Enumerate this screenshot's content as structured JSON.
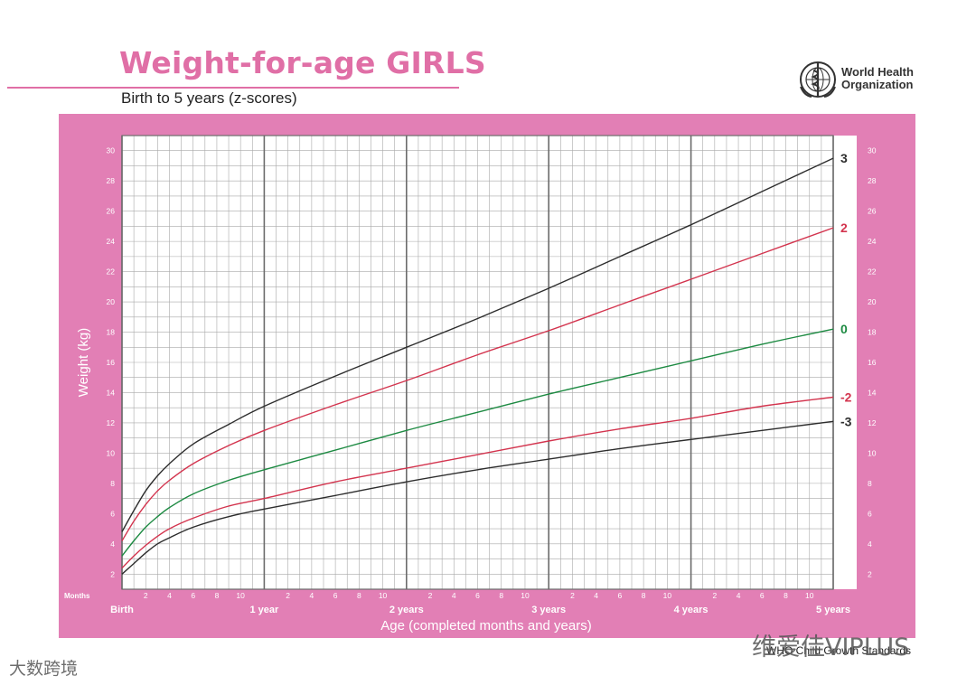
{
  "header": {
    "title": "Weight-for-age GIRLS",
    "subtitle": "Birth to 5 years (z-scores)",
    "org_line1": "World Health",
    "org_line2": "Organization",
    "footer": "WHO Child Growth Standards"
  },
  "watermarks": {
    "right": "维爱佳VIPLUS",
    "left": "大数跨境"
  },
  "colors": {
    "panel": "#e27fb5",
    "plot_bg": "#ffffff",
    "grid_minor": "#a9a9a9",
    "grid_major": "#6c6c6c",
    "z3": "#2d2d2d",
    "z2": "#d3344e",
    "z0": "#1d8a42",
    "zm2": "#d3344e",
    "zm3": "#2d2d2d"
  },
  "chart_data": {
    "type": "line",
    "title": "Weight-for-age GIRLS",
    "subtitle": "Birth to 5 years (z-scores)",
    "xlabel": "Age (completed months and years)",
    "ylabel": "Weight (kg)",
    "xlim": [
      0,
      60
    ],
    "ylim": [
      1,
      31
    ],
    "y_ticks": [
      2,
      4,
      6,
      8,
      10,
      12,
      14,
      16,
      18,
      20,
      22,
      24,
      26,
      28,
      30
    ],
    "months_label": "Months",
    "month_ticks": [
      "2",
      "4",
      "6",
      "8",
      "10"
    ],
    "year_labels": [
      "Birth",
      "1 year",
      "2 years",
      "3 years",
      "4 years",
      "5 years"
    ],
    "grid": true,
    "x": [
      0,
      1,
      2,
      3,
      4,
      6,
      9,
      12,
      18,
      24,
      30,
      36,
      42,
      48,
      54,
      60
    ],
    "series": [
      {
        "name": "3",
        "color_key": "z3",
        "values": [
          4.8,
          6.2,
          7.5,
          8.5,
          9.3,
          10.6,
          11.9,
          13.1,
          15.1,
          17.0,
          18.9,
          20.9,
          23.0,
          25.1,
          27.3,
          29.5
        ]
      },
      {
        "name": "2",
        "color_key": "z2",
        "values": [
          4.2,
          5.5,
          6.6,
          7.5,
          8.2,
          9.3,
          10.5,
          11.5,
          13.2,
          14.8,
          16.5,
          18.1,
          19.8,
          21.5,
          23.2,
          24.9
        ]
      },
      {
        "name": "0",
        "color_key": "z0",
        "values": [
          3.2,
          4.2,
          5.1,
          5.8,
          6.4,
          7.3,
          8.2,
          8.9,
          10.2,
          11.5,
          12.7,
          13.9,
          15.0,
          16.1,
          17.2,
          18.2
        ]
      },
      {
        "name": "-2",
        "color_key": "zm2",
        "values": [
          2.4,
          3.2,
          3.9,
          4.5,
          5.0,
          5.7,
          6.5,
          7.0,
          8.1,
          9.0,
          9.9,
          10.8,
          11.6,
          12.3,
          13.1,
          13.7
        ]
      },
      {
        "name": "-3",
        "color_key": "zm3",
        "values": [
          2.0,
          2.7,
          3.4,
          4.0,
          4.4,
          5.1,
          5.8,
          6.3,
          7.2,
          8.1,
          8.9,
          9.6,
          10.3,
          10.9,
          11.5,
          12.1
        ]
      }
    ]
  }
}
